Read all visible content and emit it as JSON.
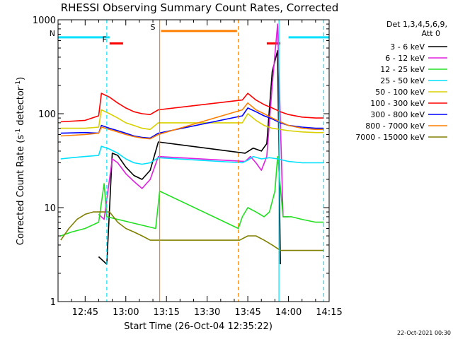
{
  "chart_data": {
    "type": "line",
    "title": "RHESSI Observing Summary Count Rates, Corrected",
    "xlabel": "Start Time (26-Oct-04 12:35:22)",
    "ylabel_main": "Corrected Count Rate (s",
    "ylabel_sup1": "-1",
    "ylabel_mid": " detector",
    "ylabel_sup2": "-1",
    "ylabel_end": ")",
    "y_scale": "log",
    "ylim": [
      1,
      1000
    ],
    "xlim": [
      "12:35:22",
      "14:15"
    ],
    "x_ticks": [
      "12:45",
      "13:00",
      "13:15",
      "13:30",
      "13:45",
      "14:00",
      "14:15"
    ],
    "y_ticks": [
      "1",
      "10",
      "100",
      "1000"
    ],
    "footer_date": "22-Oct-2021 00:30",
    "legend": {
      "header_line1": "Det 1,3,4,5,6,9,",
      "header_line2": "Att 0",
      "entries": [
        {
          "label": "3 - 6 keV",
          "color": "#000000"
        },
        {
          "label": "6 - 12 keV",
          "color": "#e020e0"
        },
        {
          "label": "12 - 25 keV",
          "color": "#20e020"
        },
        {
          "label": "25 - 50 keV",
          "color": "#00e0ff"
        },
        {
          "label": "50 - 100 keV",
          "color": "#d8d000"
        },
        {
          "label": "100 - 300 keV",
          "color": "#ff0000"
        },
        {
          "label": "300 - 800 keV",
          "color": "#0000ff"
        },
        {
          "label": "800 - 7000 keV",
          "color": "#ff7f00"
        },
        {
          "label": "7000 - 15000 keV",
          "color": "#808000"
        }
      ]
    },
    "flags": [
      {
        "label": "N",
        "color": "#00e0ff",
        "segments": [
          [
            "12:35:22",
            "12:54"
          ],
          [
            "14:00",
            "14:15"
          ]
        ]
      },
      {
        "label": "F",
        "color": "#ff0000",
        "segments": [
          [
            "12:54",
            "12:59"
          ],
          [
            "13:52",
            "13:57"
          ]
        ]
      },
      {
        "label": "S",
        "color": "#ff7f00",
        "segments": [
          [
            "13:13",
            "13:41"
          ]
        ]
      }
    ],
    "flag_levels": [
      650,
      560,
      760
    ],
    "vertical_lines": [
      {
        "time": "12:53",
        "color": "#00e0ff",
        "style": "dashed"
      },
      {
        "time": "13:12.5",
        "color": "#ff7f00",
        "style": "solid"
      },
      {
        "time": "13:41.5",
        "color": "#ff7f00",
        "style": "dashed"
      },
      {
        "time": "13:56.5",
        "color": "#00e0ff",
        "style": "solid"
      },
      {
        "time": "14:13",
        "color": "#00e0ff",
        "style": "dashed"
      }
    ],
    "series": [
      {
        "name": "3 - 6 keV",
        "color": "#000000",
        "x": [
          "12:50",
          "12:53",
          "12:55",
          "12:57",
          "13:00",
          "13:03",
          "13:06",
          "13:09",
          "13:12",
          "13:44",
          "13:47",
          "13:50",
          "13:52",
          "13:54",
          "13:56",
          "13:57"
        ],
        "y": [
          3,
          2.5,
          38,
          36,
          27,
          22,
          20,
          25,
          50,
          38,
          43,
          40,
          48,
          280,
          470,
          2.5
        ]
      },
      {
        "name": "6 - 12 keV",
        "color": "#e020e0",
        "x": [
          "12:50",
          "12:52",
          "12:55",
          "12:57",
          "13:00",
          "13:03",
          "13:06",
          "13:09",
          "13:12",
          "13:44",
          "13:46",
          "13:48",
          "13:50",
          "13:52",
          "13:54",
          "13:56",
          "13:58",
          "14:00"
        ],
        "y": [
          8.5,
          7.5,
          33,
          30,
          23,
          19,
          16,
          20,
          35,
          31,
          35,
          30,
          25,
          35,
          200,
          900,
          8,
          8
        ]
      },
      {
        "name": "12 - 25 keV",
        "color": "#20e020",
        "x": [
          "12:36",
          "12:40",
          "12:45",
          "12:50",
          "12:52",
          "12:53",
          "13:11",
          "13:12.5",
          "13:41.5",
          "13:43",
          "13:45",
          "13:48",
          "13:51",
          "13:53",
          "13:55",
          "13:56",
          "13:58",
          "14:01",
          "14:05",
          "14:10",
          "14:13"
        ],
        "y": [
          5,
          5.5,
          6,
          7,
          18,
          8,
          6,
          15,
          6,
          8,
          10,
          9,
          8,
          9,
          15,
          35,
          8,
          8,
          7.5,
          7,
          7
        ]
      },
      {
        "name": "25 - 50 keV",
        "color": "#00e0ff",
        "x": [
          "12:36",
          "12:40",
          "12:45",
          "12:50",
          "12:51",
          "12:54",
          "12:57",
          "13:00",
          "13:03",
          "13:06",
          "13:09",
          "13:12",
          "13:43",
          "13:45",
          "13:47",
          "13:50",
          "13:53",
          "13:56",
          "14:00",
          "14:05",
          "14:10",
          "14:13"
        ],
        "y": [
          33,
          34,
          35,
          36,
          45,
          42,
          38,
          33,
          30,
          29,
          30,
          34,
          30,
          32,
          35,
          33,
          34,
          33,
          31,
          30,
          30,
          30
        ]
      },
      {
        "name": "50 - 100 keV",
        "color": "#d8d000",
        "x": [
          "12:36",
          "12:45",
          "12:50",
          "12:51",
          "12:54",
          "12:57",
          "13:00",
          "13:03",
          "13:06",
          "13:09",
          "13:12",
          "13:43",
          "13:45",
          "13:48",
          "13:51",
          "13:54",
          "13:57",
          "14:00",
          "14:05",
          "14:10",
          "14:13"
        ],
        "y": [
          70,
          70,
          72,
          110,
          100,
          90,
          80,
          75,
          70,
          68,
          80,
          80,
          100,
          85,
          75,
          70,
          68,
          66,
          64,
          63,
          63
        ]
      },
      {
        "name": "100 - 300 keV",
        "color": "#ff0000",
        "x": [
          "12:36",
          "12:45",
          "12:50",
          "12:51",
          "12:54",
          "12:57",
          "13:00",
          "13:03",
          "13:06",
          "13:09",
          "13:12",
          "13:43",
          "13:45",
          "13:48",
          "13:51",
          "13:54",
          "13:57",
          "14:00",
          "14:05",
          "14:10",
          "14:13"
        ],
        "y": [
          82,
          85,
          95,
          165,
          150,
          130,
          115,
          105,
          100,
          98,
          110,
          140,
          165,
          140,
          125,
          115,
          105,
          98,
          92,
          90,
          90
        ]
      },
      {
        "name": "300 - 800 keV",
        "color": "#0000ff",
        "x": [
          "12:36",
          "12:45",
          "12:50",
          "12:51",
          "12:54",
          "12:57",
          "13:00",
          "13:03",
          "13:06",
          "13:09",
          "13:12",
          "13:43",
          "13:45",
          "13:48",
          "13:51",
          "13:54",
          "13:57",
          "14:00",
          "14:05",
          "14:10",
          "14:13"
        ],
        "y": [
          62,
          63,
          62,
          75,
          70,
          66,
          62,
          58,
          56,
          55,
          62,
          95,
          115,
          105,
          95,
          88,
          80,
          75,
          72,
          70,
          70
        ]
      },
      {
        "name": "800 - 7000 keV",
        "color": "#ff7f00",
        "x": [
          "12:36",
          "12:45",
          "12:50",
          "12:51",
          "12:54",
          "12:57",
          "13:00",
          "13:03",
          "13:06",
          "13:09",
          "13:12",
          "13:43",
          "13:45",
          "13:48",
          "13:51",
          "13:54",
          "13:57",
          "14:00",
          "14:05",
          "14:10",
          "14:13"
        ],
        "y": [
          58,
          60,
          62,
          72,
          68,
          64,
          60,
          57,
          55,
          54,
          60,
          110,
          130,
          110,
          100,
          90,
          82,
          75,
          70,
          68,
          68
        ]
      },
      {
        "name": "7000 - 15000 keV",
        "color": "#808000",
        "x": [
          "12:36",
          "12:39",
          "12:42",
          "12:45",
          "12:48",
          "12:51",
          "12:54",
          "12:57",
          "13:00",
          "13:03",
          "13:06",
          "13:09",
          "13:12",
          "13:42",
          "13:45",
          "13:48",
          "13:51",
          "13:54",
          "13:57",
          "14:00",
          "14:05",
          "14:10",
          "14:13"
        ],
        "y": [
          4.5,
          6,
          7.5,
          8.5,
          9,
          9,
          9,
          7,
          6,
          5.5,
          5,
          4.5,
          4.5,
          4.5,
          5,
          5,
          4.5,
          4,
          3.5,
          3.5,
          3.5,
          3.5,
          3.5
        ]
      }
    ]
  }
}
